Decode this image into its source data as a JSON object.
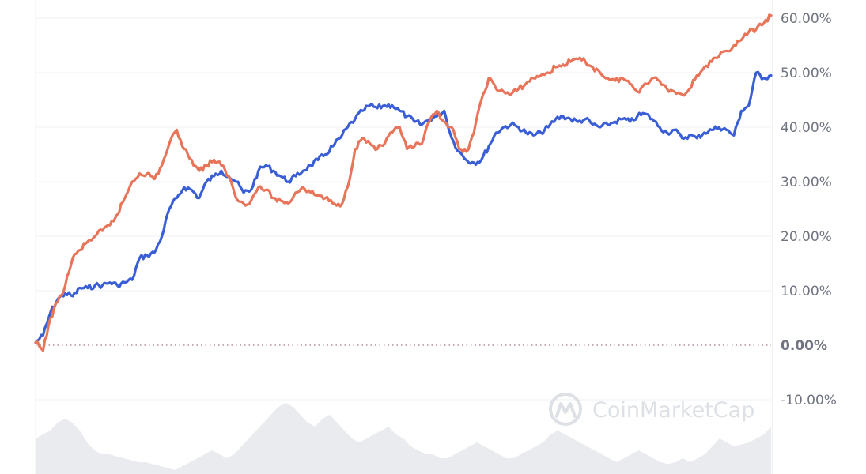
{
  "chart_data": {
    "type": "line",
    "title": "",
    "xlabel": "",
    "ylabel": "",
    "ylim": [
      -13,
      61
    ],
    "y_unit": "%",
    "y_ticks": [
      {
        "value": 60,
        "label": "60.00%"
      },
      {
        "value": 50,
        "label": "50.00%"
      },
      {
        "value": 40,
        "label": "40.00%"
      },
      {
        "value": 30,
        "label": "30.00%"
      },
      {
        "value": 20,
        "label": "20.00%"
      },
      {
        "value": 10,
        "label": "10.00%"
      },
      {
        "value": 0,
        "label": "0.00%"
      },
      {
        "value": -10,
        "label": "-10.00%"
      }
    ],
    "grid": true,
    "legend": "none",
    "baseline_value": 0,
    "n_points": 100,
    "series": [
      {
        "color": "#3a5ed6",
        "values": [
          0.5,
          1.8,
          6,
          8.5,
          9.5,
          9,
          10.5,
          10.5,
          11,
          11,
          11.5,
          11,
          11.5,
          12,
          16,
          16.5,
          17,
          20,
          25,
          27,
          29,
          28.5,
          27,
          30,
          31,
          32,
          31,
          30,
          28,
          28.5,
          32,
          33,
          32,
          31,
          30,
          31,
          32,
          33,
          34,
          35,
          36.5,
          38,
          40,
          41.5,
          43,
          44,
          43.5,
          44,
          44,
          43,
          42,
          41,
          40.5,
          41.5,
          42,
          43,
          38,
          35.5,
          34,
          33.5,
          34,
          36.5,
          39,
          40,
          40.5,
          40,
          39,
          38.5,
          39,
          40,
          41.5,
          42,
          41.5,
          41,
          41.5,
          40.5,
          40,
          40.5,
          41,
          41.5,
          41,
          42,
          42.5,
          41.5,
          40,
          39,
          39.5,
          38,
          38.5,
          38,
          39,
          39.5,
          40,
          39.5,
          38.5,
          43,
          44,
          50,
          49,
          49.5
        ]
      },
      {
        "color": "#e87459",
        "values": [
          0.5,
          -1,
          5,
          8,
          11,
          16,
          17.5,
          19,
          20,
          21,
          22,
          24,
          27,
          30,
          31.5,
          31.5,
          30.5,
          33,
          37,
          39.5,
          36,
          34,
          32,
          33,
          34,
          33,
          31,
          27,
          26,
          26.5,
          29,
          28.5,
          27,
          26.5,
          26,
          28,
          29,
          28,
          27.5,
          27,
          26,
          25.5,
          29,
          36,
          38,
          37,
          36,
          37,
          39,
          40,
          36,
          36.5,
          37,
          41,
          43,
          41,
          40,
          36,
          35.5,
          39,
          45,
          49,
          47,
          46.5,
          46,
          47,
          48,
          49,
          49.5,
          50,
          51,
          51.5,
          52,
          52.5,
          52,
          51,
          50,
          49,
          48.5,
          49,
          48,
          46.5,
          48,
          49,
          48.5,
          47,
          46.5,
          46,
          47,
          49.5,
          51,
          52,
          53,
          54,
          55,
          56,
          57.5,
          58,
          59,
          60.5
        ]
      }
    ]
  },
  "volume_area": {
    "color": "#e9ebef",
    "values": [
      9,
      10,
      11,
      13,
      14,
      13,
      11,
      8,
      6,
      5,
      5,
      4.5,
      4,
      3.5,
      3,
      3,
      2.5,
      2,
      1.5,
      1,
      2,
      3,
      4,
      5,
      6,
      5,
      4,
      5,
      7,
      9,
      11,
      13,
      15,
      17,
      18,
      17,
      15,
      13,
      12,
      14,
      15,
      13,
      11,
      9,
      8,
      9,
      10,
      11,
      12,
      10,
      9,
      7,
      6,
      5,
      5,
      4,
      4,
      5,
      6,
      7,
      8,
      7,
      6,
      5,
      4,
      4,
      5,
      6,
      7,
      8,
      10,
      11,
      10,
      9,
      8,
      7,
      6,
      5,
      4,
      3,
      4,
      5,
      6,
      5,
      4,
      3,
      2.5,
      3,
      4,
      3,
      4,
      5,
      7,
      9,
      8,
      7,
      7.5,
      8,
      9,
      10,
      12
    ]
  },
  "watermark": {
    "text": "CoinMarketCap",
    "icon": "coinmarketcap-logo-icon",
    "color": "#dde1e6"
  },
  "colors": {
    "grid": "#eef0f3",
    "axis_divider": "#e9ebee",
    "zero_line": "#b58ba0",
    "tick_text": "#6f7480"
  }
}
